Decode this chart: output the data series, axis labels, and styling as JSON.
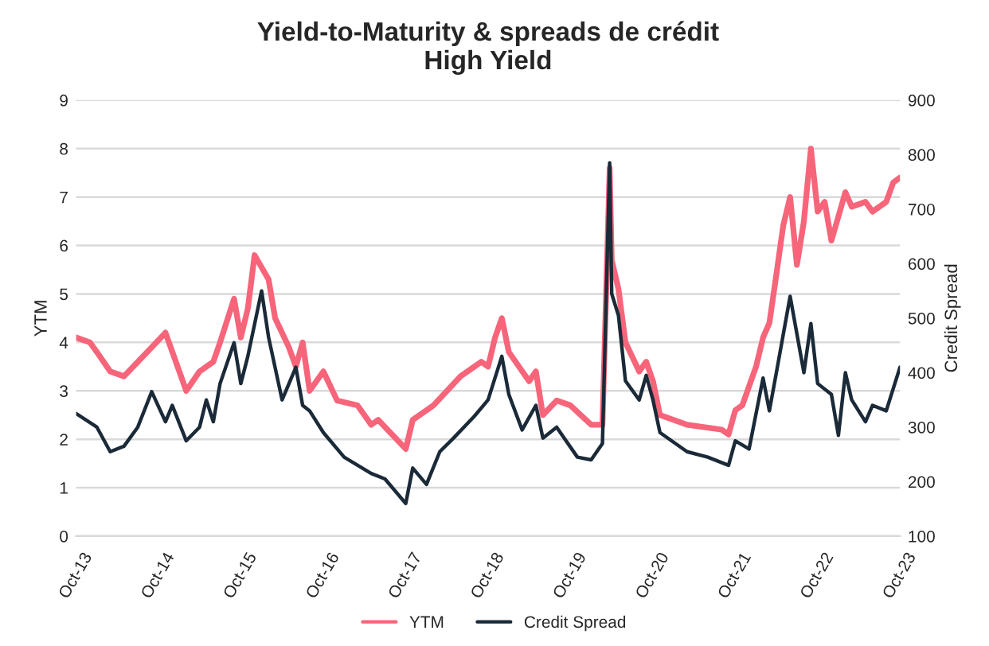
{
  "chart_data": {
    "type": "line",
    "title": "Yield-to-Maturity & spreads de crédit\nHigh Yield",
    "ylabel": "YTM",
    "y2label": "Credit Spread",
    "xlim": [
      "2013-10",
      "2023-10"
    ],
    "xticks": [
      {
        "value": "2013-10",
        "label": "Oct-13"
      },
      {
        "value": "2014-10",
        "label": "Oct-14"
      },
      {
        "value": "2015-10",
        "label": "Oct-15"
      },
      {
        "value": "2016-10",
        "label": "Oct-16"
      },
      {
        "value": "2017-10",
        "label": "Oct-17"
      },
      {
        "value": "2018-10",
        "label": "Oct-18"
      },
      {
        "value": "2019-10",
        "label": "Oct-19"
      },
      {
        "value": "2020-10",
        "label": "Oct-20"
      },
      {
        "value": "2021-10",
        "label": "Oct-21"
      },
      {
        "value": "2022-10",
        "label": "Oct-22"
      },
      {
        "value": "2023-10",
        "label": "Oct-23"
      }
    ],
    "ylim": [
      0,
      9
    ],
    "yticks": [
      0,
      1,
      2,
      3,
      4,
      5,
      6,
      7,
      8,
      9
    ],
    "y2lim": [
      100,
      900
    ],
    "y2ticks": [
      100,
      200,
      300,
      400,
      500,
      600,
      700,
      800,
      900
    ],
    "grid": "y",
    "legend": "bottom",
    "line_style": "solid",
    "series": [
      {
        "name": "YTM",
        "color": "#f7657a",
        "x": [
          "2013-10",
          "2013-12",
          "2014-01",
          "2014-03",
          "2014-05",
          "2014-09",
          "2014-11",
          "2015-02",
          "2015-04",
          "2015-06",
          "2015-07",
          "2015-09",
          "2015-10",
          "2015-11",
          "2015-12",
          "2016-02",
          "2016-03",
          "2016-05",
          "2016-06",
          "2016-07",
          "2016-08",
          "2016-10",
          "2016-12",
          "2017-03",
          "2017-05",
          "2017-06",
          "2017-10",
          "2017-11",
          "2018-02",
          "2018-06",
          "2018-09",
          "2018-10",
          "2018-11",
          "2018-12",
          "2019-01",
          "2019-04",
          "2019-05",
          "2019-06",
          "2019-08",
          "2019-10",
          "2020-01",
          "2020-02-20",
          "2020-03-23",
          "2020-04",
          "2020-05",
          "2020-06",
          "2020-08",
          "2020-09",
          "2020-10",
          "2020-11",
          "2021-03",
          "2021-08",
          "2021-09",
          "2021-10",
          "2021-11",
          "2022-01",
          "2022-02",
          "2022-03",
          "2022-04",
          "2022-05",
          "2022-06",
          "2022-07",
          "2022-08",
          "2022-09",
          "2022-10",
          "2022-11",
          "2022-12",
          "2023-02",
          "2023-03",
          "2023-05",
          "2023-06",
          "2023-08",
          "2023-09",
          "2023-10"
        ],
        "values": [
          4.1,
          4.0,
          3.8,
          3.4,
          3.3,
          3.9,
          4.2,
          3.0,
          3.4,
          3.6,
          4.0,
          4.9,
          4.1,
          4.7,
          5.8,
          5.3,
          4.5,
          3.9,
          3.5,
          4.0,
          3.0,
          3.4,
          2.8,
          2.7,
          2.3,
          2.4,
          1.8,
          2.4,
          2.7,
          3.3,
          3.6,
          3.5,
          4.1,
          4.5,
          3.8,
          3.2,
          3.4,
          2.5,
          2.8,
          2.7,
          2.3,
          2.3,
          7.6,
          5.7,
          5.1,
          4.0,
          3.4,
          3.6,
          3.2,
          2.5,
          2.3,
          2.2,
          2.1,
          2.6,
          2.7,
          3.5,
          4.1,
          4.4,
          5.4,
          6.4,
          7.0,
          5.6,
          6.5,
          8.0,
          6.7,
          6.9,
          6.1,
          7.1,
          6.8,
          6.9,
          6.7,
          6.9,
          7.3,
          7.4
        ]
      },
      {
        "name": "Credit Spread",
        "color": "#1b2a38",
        "axis": "y2",
        "x": [
          "2013-10",
          "2014-01",
          "2014-03",
          "2014-05",
          "2014-07",
          "2014-09",
          "2014-11",
          "2014-12",
          "2015-02",
          "2015-04",
          "2015-05",
          "2015-06",
          "2015-07",
          "2015-09",
          "2015-10",
          "2015-11",
          "2016-01",
          "2016-02",
          "2016-04",
          "2016-06",
          "2016-07",
          "2016-08",
          "2016-10",
          "2017-01",
          "2017-05",
          "2017-07",
          "2017-10",
          "2017-11",
          "2018-01",
          "2018-03",
          "2018-05",
          "2018-08",
          "2018-10",
          "2018-12",
          "2019-01",
          "2019-03",
          "2019-05",
          "2019-06",
          "2019-08",
          "2019-11",
          "2020-01",
          "2020-02-20",
          "2020-03-23",
          "2020-04",
          "2020-05",
          "2020-06",
          "2020-08",
          "2020-09",
          "2020-10",
          "2020-11",
          "2021-03",
          "2021-06",
          "2021-09",
          "2021-10",
          "2021-12",
          "2022-02",
          "2022-03",
          "2022-04",
          "2022-06",
          "2022-08",
          "2022-09",
          "2022-10",
          "2022-12",
          "2023-01",
          "2023-02",
          "2023-03",
          "2023-05",
          "2023-06",
          "2023-08",
          "2023-10"
        ],
        "values": [
          325,
          300,
          255,
          265,
          300,
          365,
          310,
          340,
          275,
          300,
          350,
          310,
          380,
          455,
          380,
          430,
          550,
          465,
          350,
          410,
          340,
          330,
          290,
          245,
          215,
          205,
          160,
          225,
          195,
          255,
          280,
          320,
          350,
          430,
          360,
          295,
          340,
          280,
          300,
          245,
          240,
          270,
          785,
          545,
          505,
          385,
          350,
          395,
          350,
          290,
          255,
          245,
          230,
          275,
          260,
          390,
          330,
          400,
          540,
          400,
          490,
          380,
          360,
          285,
          400,
          350,
          310,
          340,
          330,
          410
        ]
      }
    ]
  }
}
